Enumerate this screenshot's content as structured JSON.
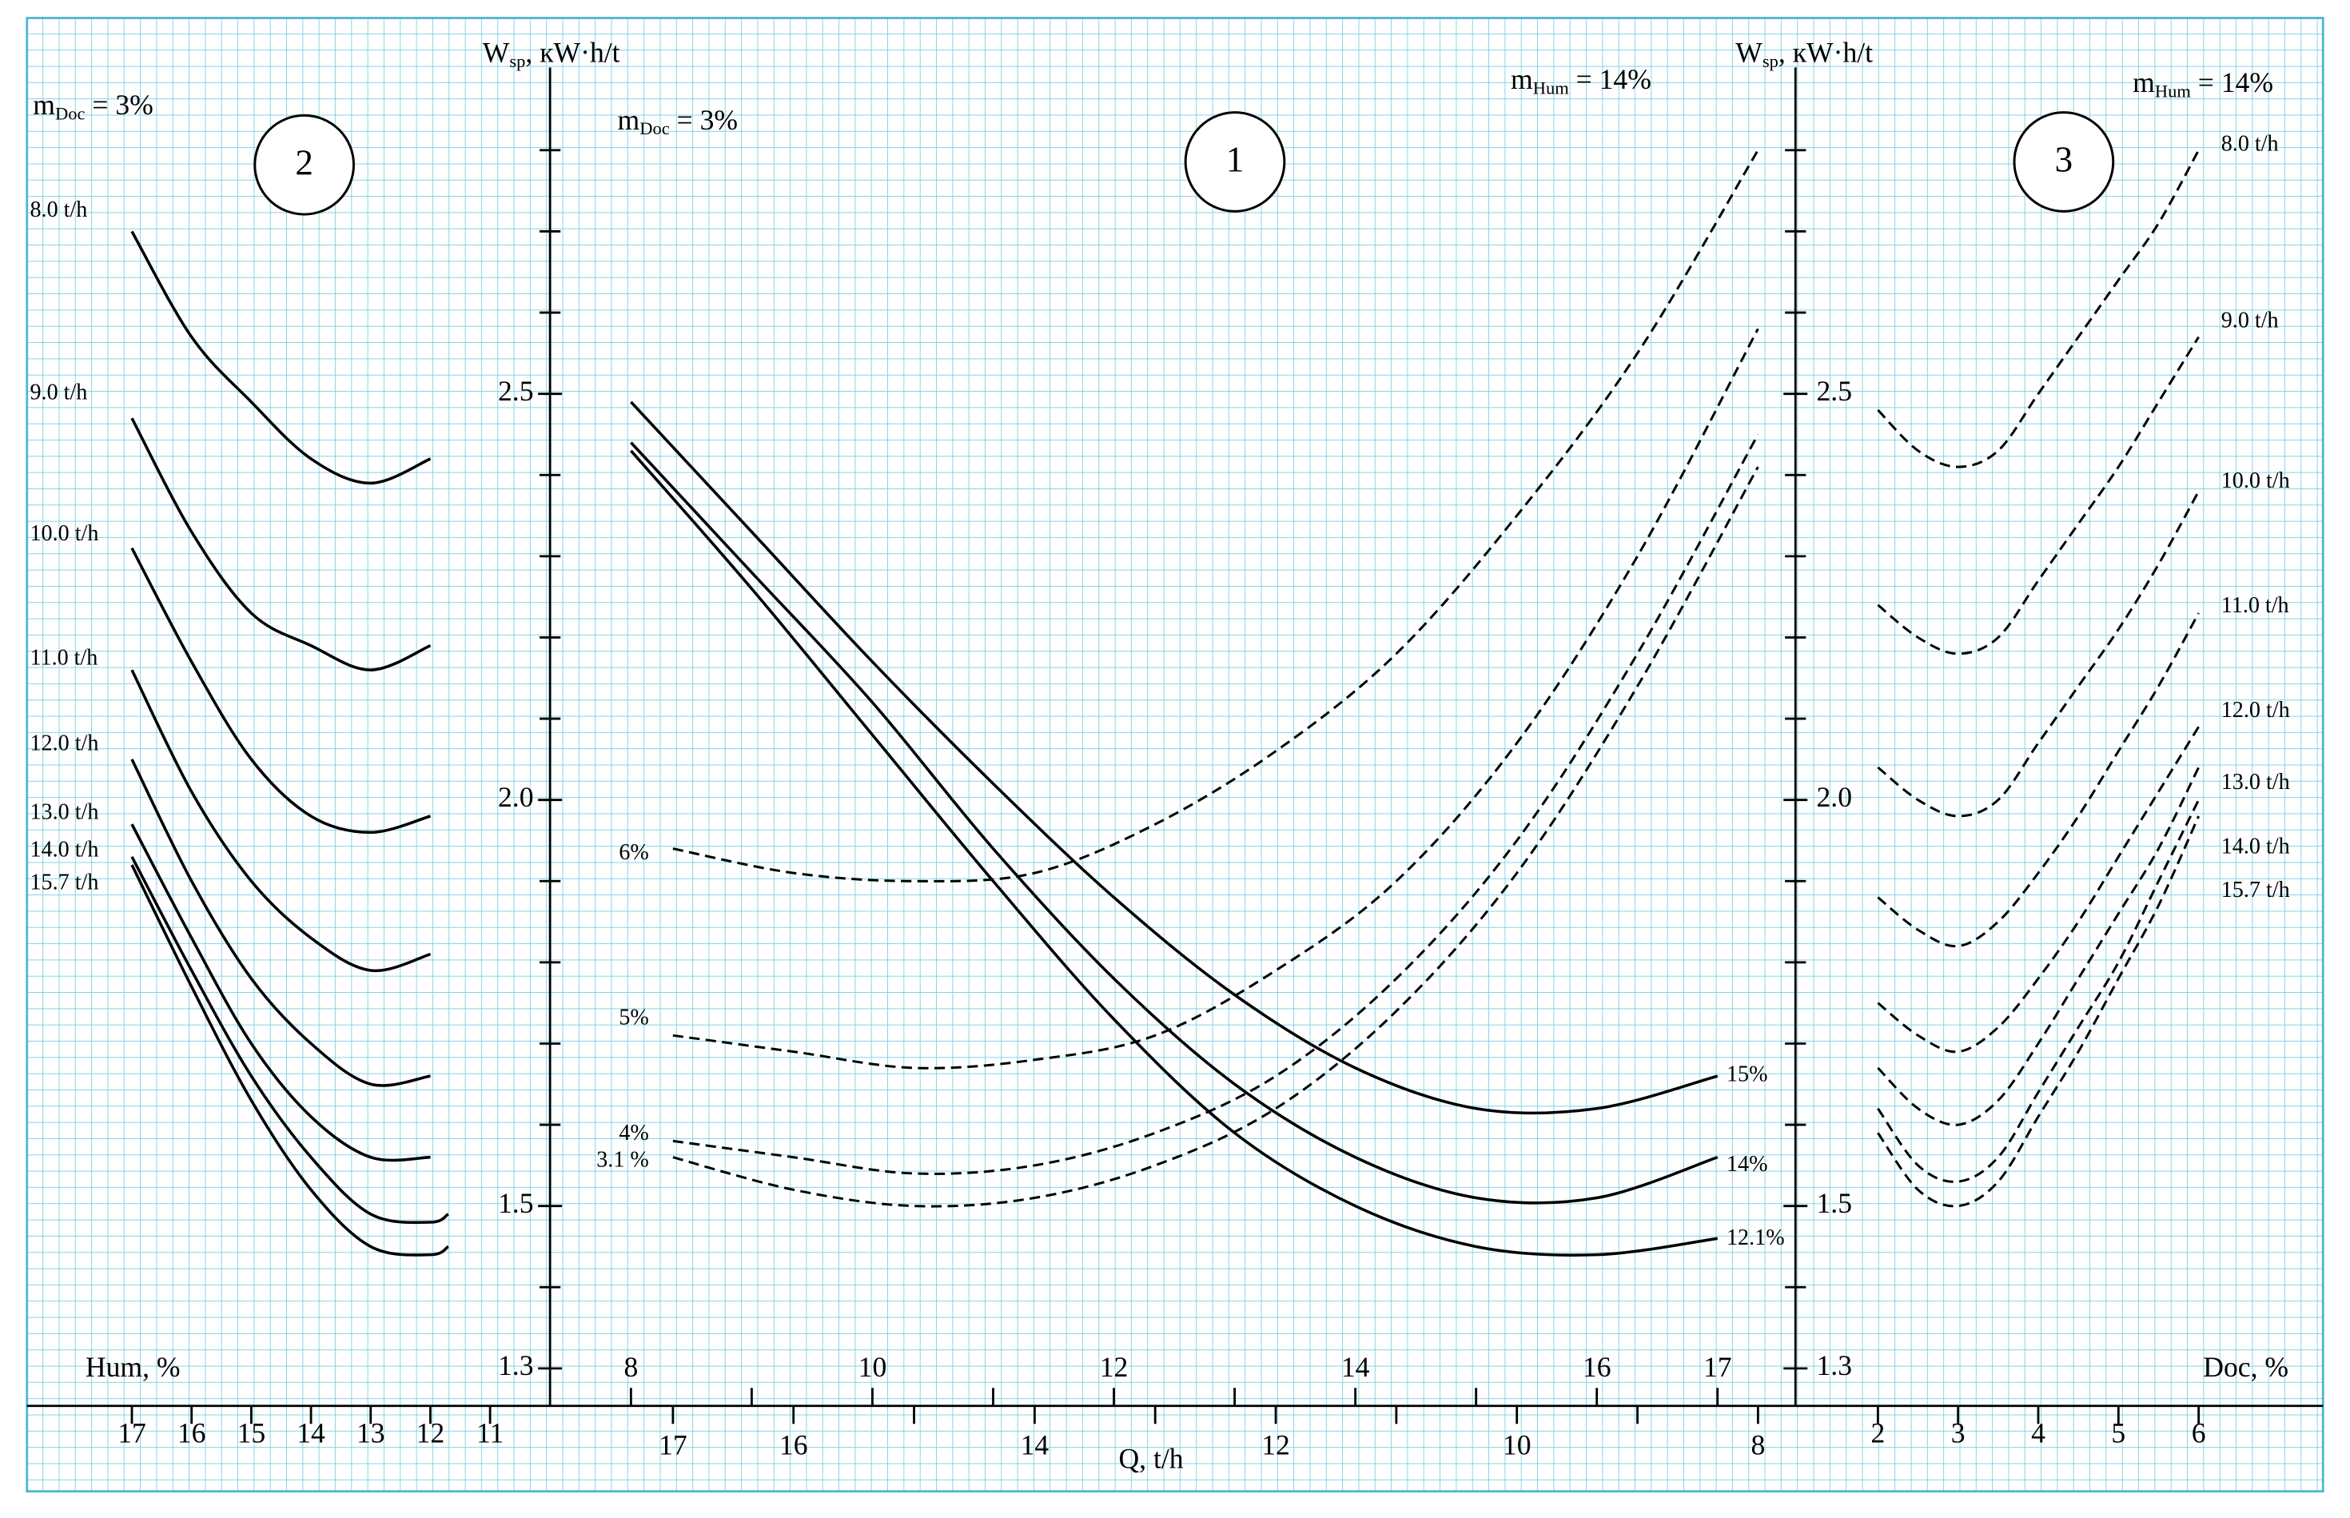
{
  "chart_data": [
    {
      "type": "line",
      "panel_label": "2",
      "annotations": [
        {
          "base": "m",
          "sub": "Doc",
          "rest": " = 3%"
        }
      ],
      "xlabel": "Hum, %",
      "xlim": [
        17,
        11
      ],
      "xticks": [
        17,
        16,
        15,
        14,
        13,
        12,
        11
      ],
      "ylim": [
        1.3,
        2.9
      ],
      "series": [
        {
          "name": "8.0 t/h",
          "color": "#000000",
          "line_style": "solid",
          "x": [
            17,
            16,
            15,
            14,
            13,
            12
          ],
          "values": [
            2.7,
            2.57,
            2.49,
            2.42,
            2.39,
            2.42
          ]
        },
        {
          "name": "9.0 t/h",
          "color": "#000000",
          "line_style": "solid",
          "x": [
            17,
            16,
            15,
            14,
            13,
            12
          ],
          "values": [
            2.47,
            2.33,
            2.23,
            2.19,
            2.16,
            2.19
          ]
        },
        {
          "name": "10.0 t/h",
          "color": "#000000",
          "line_style": "solid",
          "x": [
            17,
            16,
            15,
            14,
            13,
            12
          ],
          "values": [
            2.31,
            2.17,
            2.05,
            1.98,
            1.96,
            1.98
          ]
        },
        {
          "name": "11.0 t/h",
          "color": "#000000",
          "line_style": "solid",
          "x": [
            17,
            16,
            15,
            14,
            13,
            12
          ],
          "values": [
            2.16,
            2.01,
            1.9,
            1.83,
            1.79,
            1.81
          ]
        },
        {
          "name": "12.0 t/h",
          "color": "#000000",
          "line_style": "solid",
          "x": [
            17,
            16,
            15,
            14,
            13,
            12
          ],
          "values": [
            2.05,
            1.9,
            1.78,
            1.7,
            1.65,
            1.66
          ]
        },
        {
          "name": "13.0 t/h",
          "color": "#000000",
          "line_style": "solid",
          "x": [
            17,
            16,
            15,
            14,
            13,
            12
          ],
          "values": [
            1.97,
            1.83,
            1.7,
            1.61,
            1.56,
            1.56
          ]
        },
        {
          "name": "14.0 t/h",
          "color": "#000000",
          "line_style": "solid",
          "x": [
            17,
            16,
            15,
            14,
            13,
            12,
            11.7
          ],
          "values": [
            1.93,
            1.79,
            1.66,
            1.56,
            1.49,
            1.48,
            1.49
          ]
        },
        {
          "name": "15.7 t/h",
          "color": "#000000",
          "line_style": "solid",
          "x": [
            17,
            16,
            15,
            14,
            13,
            12,
            11.7
          ],
          "values": [
            1.92,
            1.77,
            1.63,
            1.52,
            1.45,
            1.44,
            1.45
          ]
        }
      ]
    },
    {
      "type": "line",
      "panel_label": "1",
      "ylabel": {
        "base": "W",
        "sub": "sp",
        "rest": ", кW·h/t"
      },
      "annotations": [
        {
          "base": "m",
          "sub": "Doc",
          "rest": " = 3%"
        },
        {
          "base": "m",
          "sub": "Hum",
          "rest": " = 14%"
        }
      ],
      "ylim": [
        1.3,
        2.9
      ],
      "yticks": [
        1.3,
        1.5,
        {
          "value": 2,
          "label": "2.0"
        },
        2.5
      ],
      "yminorticks": [
        1.4,
        1.6,
        1.7,
        1.8,
        1.9,
        2.1,
        2.2,
        2.3,
        2.4,
        2.6,
        2.7,
        2.8
      ],
      "xlim": [
        8,
        17
      ],
      "xticks": [
        8,
        10,
        12,
        14,
        16,
        17
      ],
      "xminorticks": [
        9,
        11,
        13,
        15
      ],
      "x2label": "Q, t/h",
      "x2lim": [
        17,
        8
      ],
      "x2ticks": [
        17,
        16,
        14,
        12,
        10,
        8
      ],
      "x2minorticks": [
        15,
        13,
        11,
        9
      ],
      "series": [
        {
          "name": "15%",
          "color": "#000000",
          "line_style": "solid",
          "x": [
            8,
            9,
            10,
            11,
            12,
            13,
            14,
            15,
            16,
            17
          ],
          "values": [
            2.49,
            2.33,
            2.17,
            2.02,
            1.88,
            1.76,
            1.67,
            1.62,
            1.62,
            1.66
          ]
        },
        {
          "name": "14%",
          "color": "#000000",
          "line_style": "solid",
          "x": [
            8,
            9,
            10,
            11,
            12,
            13,
            14,
            15,
            16,
            17
          ],
          "values": [
            2.44,
            2.28,
            2.12,
            1.94,
            1.78,
            1.65,
            1.56,
            1.51,
            1.51,
            1.56
          ]
        },
        {
          "name": "12.1%",
          "color": "#000000",
          "line_style": "solid",
          "x": [
            8,
            9,
            10,
            11,
            12,
            13,
            14,
            15,
            16,
            17
          ],
          "values": [
            2.43,
            2.26,
            2.08,
            1.9,
            1.73,
            1.59,
            1.5,
            1.45,
            1.44,
            1.46
          ]
        },
        {
          "name": "6%",
          "color": "#000000",
          "line_style": "dashed",
          "axis": "x2",
          "x": [
            17,
            16,
            15,
            14,
            13,
            12,
            11,
            10,
            9,
            8
          ],
          "values": [
            1.94,
            1.91,
            1.9,
            1.91,
            1.97,
            2.06,
            2.18,
            2.35,
            2.55,
            2.8
          ]
        },
        {
          "name": "5%",
          "color": "#000000",
          "line_style": "dashed",
          "axis": "x2",
          "x": [
            17,
            16,
            15,
            14,
            13,
            12,
            11,
            10,
            9,
            8
          ],
          "values": [
            1.71,
            1.69,
            1.67,
            1.68,
            1.71,
            1.79,
            1.9,
            2.07,
            2.3,
            2.58
          ]
        },
        {
          "name": "4%",
          "color": "#000000",
          "line_style": "dashed",
          "axis": "x2",
          "x": [
            17,
            16,
            15,
            14,
            13,
            12,
            11,
            10,
            9,
            8
          ],
          "values": [
            1.58,
            1.56,
            1.54,
            1.55,
            1.59,
            1.66,
            1.78,
            1.95,
            2.18,
            2.45
          ]
        },
        {
          "name": "3.1 %",
          "color": "#000000",
          "line_style": "dashed",
          "axis": "x2",
          "x": [
            17,
            16,
            15,
            14,
            13,
            12,
            11,
            10,
            9,
            8
          ],
          "values": [
            1.56,
            1.52,
            1.5,
            1.51,
            1.55,
            1.62,
            1.74,
            1.91,
            2.14,
            2.41
          ]
        }
      ]
    },
    {
      "type": "line",
      "panel_label": "3",
      "ylabel": {
        "base": "W",
        "sub": "sp",
        "rest": ", кW·h/t"
      },
      "annotations": [
        {
          "base": "m",
          "sub": "Hum",
          "rest": " = 14%"
        }
      ],
      "ylim": [
        1.3,
        2.9
      ],
      "yticks": [
        1.3,
        1.5,
        {
          "value": 2,
          "label": "2.0"
        },
        2.5
      ],
      "yminorticks": [
        1.4,
        1.6,
        1.7,
        1.8,
        1.9,
        2.1,
        2.2,
        2.3,
        2.4,
        2.6,
        2.7,
        2.8
      ],
      "xlabel": "Doc, %",
      "xlim": [
        2,
        6
      ],
      "xticks": [
        2,
        3,
        4,
        5,
        6
      ],
      "series": [
        {
          "name": "8.0 t/h",
          "color": "#000000",
          "line_style": "dashed",
          "x": [
            2,
            2.5,
            3,
            3.5,
            4,
            4.5,
            5,
            5.5,
            6
          ],
          "values": [
            2.48,
            2.43,
            2.41,
            2.43,
            2.5,
            2.57,
            2.64,
            2.71,
            2.8
          ]
        },
        {
          "name": "9.0 t/h",
          "color": "#000000",
          "line_style": "dashed",
          "x": [
            2,
            2.5,
            3,
            3.5,
            4,
            4.5,
            5,
            5.5,
            6
          ],
          "values": [
            2.24,
            2.2,
            2.18,
            2.2,
            2.27,
            2.34,
            2.41,
            2.49,
            2.57
          ]
        },
        {
          "name": "10.0 t/h",
          "color": "#000000",
          "line_style": "dashed",
          "x": [
            2,
            2.5,
            3,
            3.5,
            4,
            4.5,
            5,
            5.5,
            6
          ],
          "values": [
            2.04,
            2.0,
            1.98,
            2.0,
            2.07,
            2.14,
            2.21,
            2.29,
            2.38
          ]
        },
        {
          "name": "11.0 t/h",
          "color": "#000000",
          "line_style": "dashed",
          "x": [
            2,
            2.5,
            3,
            3.5,
            4,
            4.5,
            5,
            5.5,
            6
          ],
          "values": [
            1.88,
            1.84,
            1.82,
            1.85,
            1.91,
            1.98,
            2.06,
            2.14,
            2.23
          ]
        },
        {
          "name": "12.0 t/h",
          "color": "#000000",
          "line_style": "dashed",
          "x": [
            2,
            2.5,
            3,
            3.5,
            4,
            4.5,
            5,
            5.5,
            6
          ],
          "values": [
            1.75,
            1.71,
            1.69,
            1.72,
            1.78,
            1.85,
            1.93,
            2.01,
            2.09
          ]
        },
        {
          "name": "13.0 t/h",
          "color": "#000000",
          "line_style": "dashed",
          "x": [
            2,
            2.5,
            3,
            3.5,
            4,
            4.5,
            5,
            5.5,
            6
          ],
          "values": [
            1.67,
            1.62,
            1.6,
            1.63,
            1.7,
            1.78,
            1.86,
            1.94,
            2.04
          ]
        },
        {
          "name": "14.0 t/h",
          "color": "#000000",
          "line_style": "dashed",
          "x": [
            2,
            2.5,
            3,
            3.5,
            4,
            4.5,
            5,
            5.5,
            6
          ],
          "values": [
            1.62,
            1.55,
            1.53,
            1.56,
            1.64,
            1.72,
            1.8,
            1.9,
            2.0
          ]
        },
        {
          "name": "15.7 t/h",
          "color": "#000000",
          "line_style": "dashed",
          "x": [
            2,
            2.5,
            3,
            3.5,
            4,
            4.5,
            5,
            5.5,
            6
          ],
          "values": [
            1.59,
            1.52,
            1.5,
            1.53,
            1.61,
            1.69,
            1.78,
            1.87,
            1.98
          ]
        }
      ]
    }
  ]
}
